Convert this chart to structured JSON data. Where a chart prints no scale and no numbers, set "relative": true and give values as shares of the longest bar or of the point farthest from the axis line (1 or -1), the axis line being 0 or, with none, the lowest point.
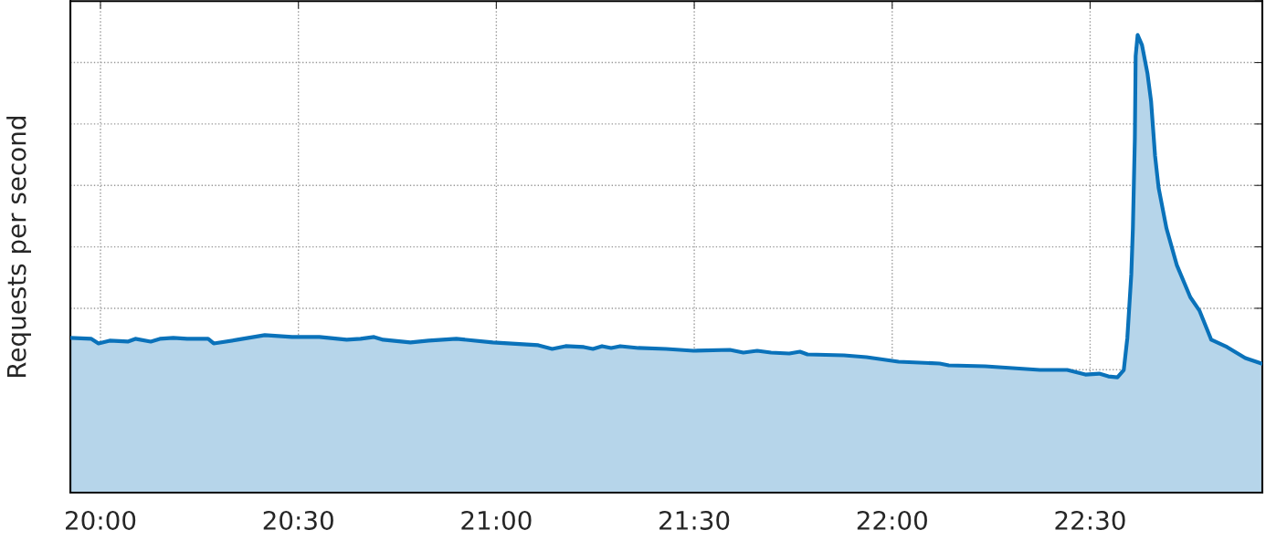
{
  "chart_data": {
    "type": "area",
    "ylabel": "Requests per second",
    "relative": true,
    "grid": true,
    "line_style": "solid",
    "xlim": [
      19.924,
      22.935
    ],
    "xticks": [
      {
        "value": 20,
        "label": "20:00"
      },
      {
        "value": 20.5,
        "label": "20:30"
      },
      {
        "value": 21,
        "label": "21:00"
      },
      {
        "value": 21.5,
        "label": "21:30"
      },
      {
        "value": 22,
        "label": "22:00"
      },
      {
        "value": 22.5,
        "label": "22:30"
      }
    ],
    "series": [
      {
        "color": "#0a72ba",
        "x": [
          19.924,
          19.977,
          19.995,
          20.023,
          20.069,
          20.088,
          20.127,
          20.15,
          20.184,
          20.219,
          20.272,
          20.286,
          20.346,
          20.415,
          20.484,
          20.553,
          20.622,
          20.657,
          20.691,
          20.714,
          20.783,
          20.829,
          20.899,
          20.991,
          21.106,
          21.141,
          21.175,
          21.221,
          21.244,
          21.267,
          21.29,
          21.313,
          21.359,
          21.429,
          21.498,
          21.59,
          21.624,
          21.659,
          21.694,
          21.74,
          21.767,
          21.786,
          21.878,
          21.935,
          22.016,
          22.12,
          22.143,
          22.235,
          22.373,
          22.442,
          22.488,
          22.523,
          22.546,
          22.569,
          22.585,
          22.594,
          22.604,
          22.608,
          22.613,
          22.615,
          22.62,
          22.631,
          22.645,
          22.654,
          22.664,
          22.673,
          22.693,
          22.719,
          22.753,
          22.776,
          22.806,
          22.846,
          22.892,
          22.933
        ],
        "values": [
          0.338,
          0.336,
          0.326,
          0.332,
          0.33,
          0.336,
          0.33,
          0.336,
          0.338,
          0.336,
          0.336,
          0.326,
          0.334,
          0.344,
          0.34,
          0.34,
          0.334,
          0.336,
          0.34,
          0.334,
          0.328,
          0.332,
          0.336,
          0.328,
          0.322,
          0.314,
          0.32,
          0.318,
          0.314,
          0.32,
          0.316,
          0.32,
          0.316,
          0.314,
          0.31,
          0.312,
          0.306,
          0.31,
          0.306,
          0.304,
          0.308,
          0.302,
          0.3,
          0.296,
          0.286,
          0.282,
          0.278,
          0.276,
          0.268,
          0.268,
          0.258,
          0.26,
          0.254,
          0.252,
          0.268,
          0.338,
          0.477,
          0.577,
          0.775,
          0.954,
          1.0,
          0.978,
          0.915,
          0.855,
          0.736,
          0.666,
          0.577,
          0.497,
          0.427,
          0.398,
          0.334,
          0.318,
          0.294,
          0.282
        ]
      }
    ]
  }
}
